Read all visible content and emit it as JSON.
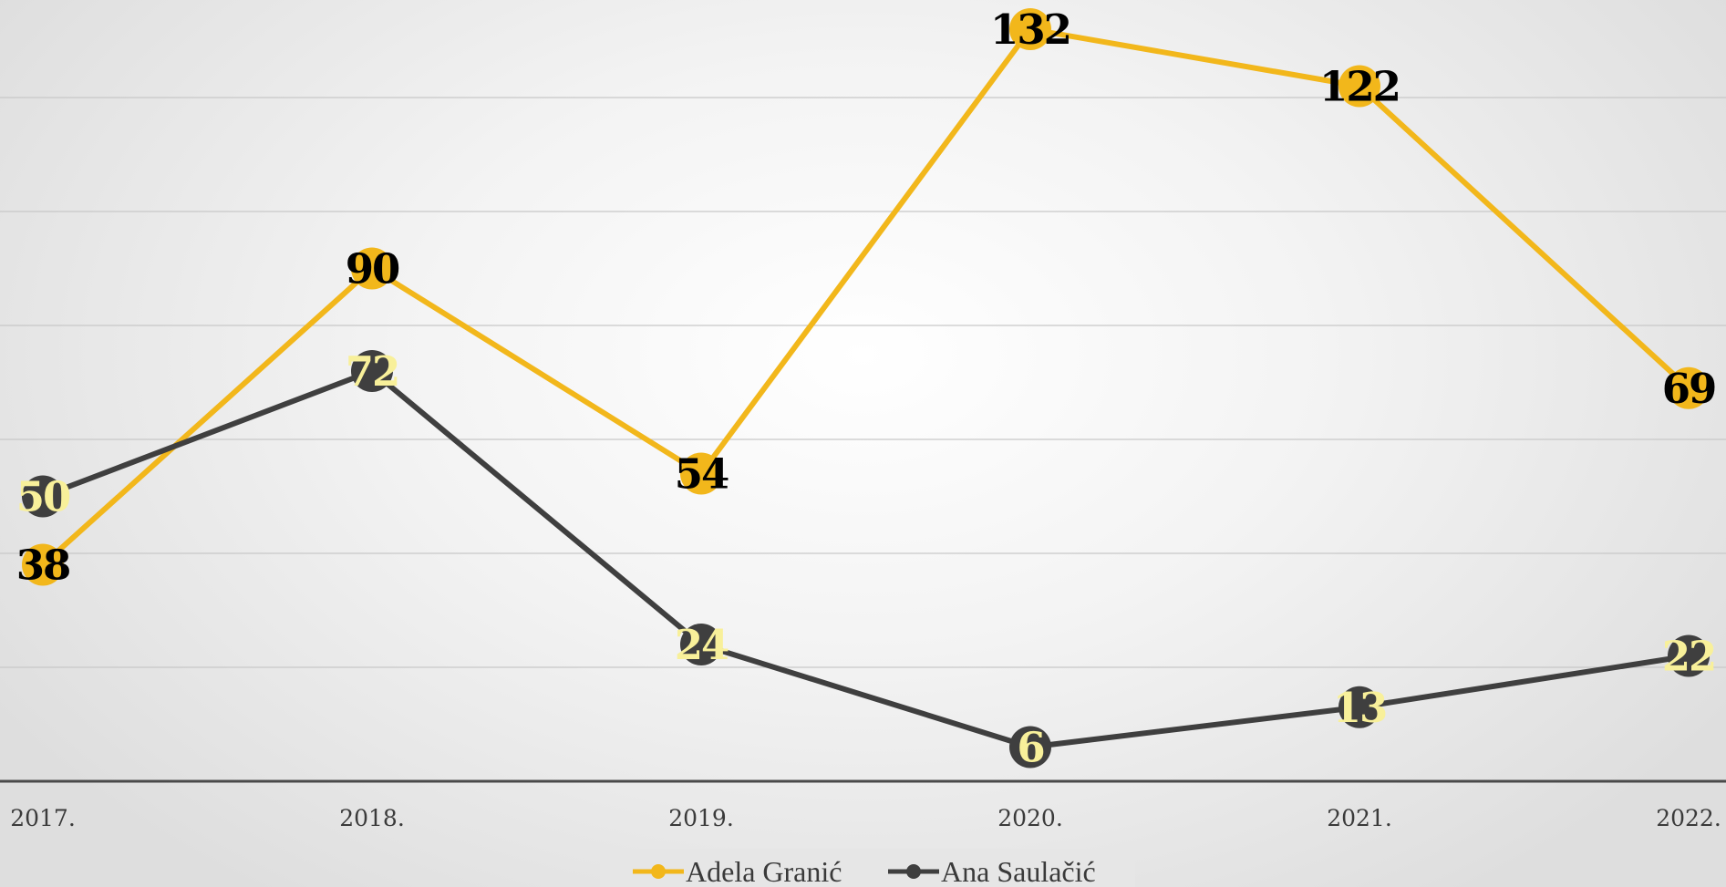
{
  "chart_data": {
    "type": "line",
    "categories": [
      "2017.",
      "2018.",
      "2019.",
      "2020.",
      "2021.",
      "2022."
    ],
    "series": [
      {
        "name": "Adela Granić",
        "values": [
          38,
          90,
          54,
          132,
          122,
          69
        ],
        "color": "#F2B71B",
        "label_color": "#000000"
      },
      {
        "name": "Ana Saulačić",
        "values": [
          50,
          72,
          24,
          6,
          13,
          22
        ],
        "color": "#3F3F3F",
        "label_color": "#F8F09A"
      }
    ],
    "title": "",
    "xlabel": "",
    "ylabel": "",
    "ylim": [
      0,
      140
    ],
    "grid": true,
    "legend": "bottom",
    "data_labels": true
  }
}
